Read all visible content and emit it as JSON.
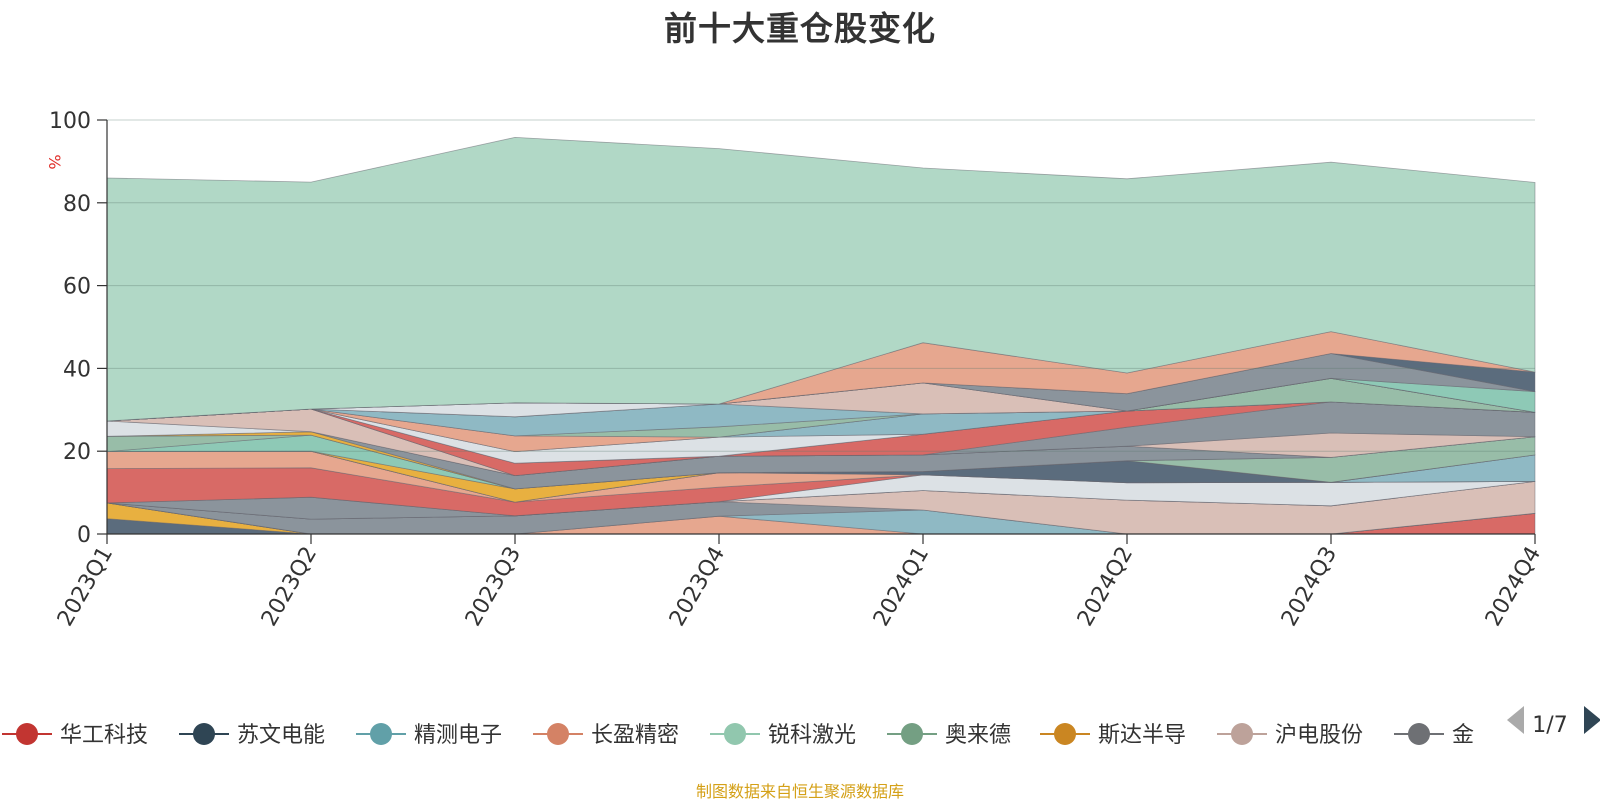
{
  "title": "前十大重仓股变化",
  "footer": "制图数据来自恒生聚源数据库",
  "legend_page": "1/7",
  "chart_data": {
    "type": "area",
    "stacked": true,
    "title": "前十大重仓股变化",
    "ylabel": "%",
    "ylim": [
      0,
      100
    ],
    "yticks": [
      0,
      20,
      40,
      60,
      80,
      100
    ],
    "grid": true,
    "legend_position": "bottom",
    "categories": [
      "2023Q1",
      "2023Q2",
      "2023Q3",
      "2023Q4",
      "2024Q1",
      "2024Q2",
      "2024Q3",
      "2024Q4"
    ],
    "layers": [
      {
        "color": "#5b6c7d",
        "values": [
          3.7,
          0,
          0,
          0,
          0,
          0,
          0,
          0
        ]
      },
      {
        "color": "#e8b040",
        "values": [
          3.8,
          0,
          0,
          0,
          0,
          0,
          0,
          0
        ]
      },
      {
        "color": "#d86a66",
        "values": [
          0,
          0,
          0,
          0,
          0,
          0,
          0,
          5
        ]
      },
      {
        "color": "#8ec9b6",
        "values": [
          0,
          0,
          0,
          0,
          0,
          0,
          0,
          0
        ]
      },
      {
        "color": "#e6a78f",
        "values": [
          0,
          0,
          0,
          4.3,
          0,
          0,
          0,
          0
        ]
      },
      {
        "color": "#8fb9c4",
        "values": [
          0,
          0,
          0,
          0,
          5.8,
          0,
          0,
          0
        ]
      },
      {
        "color": "#8b949c",
        "values": [
          0,
          3.6,
          4.4,
          3.5,
          0,
          0,
          0,
          0
        ]
      },
      {
        "color": "#d9bfb7",
        "values": [
          0,
          0,
          0,
          0,
          4.7,
          8.2,
          6.8,
          7.7
        ]
      },
      {
        "color": "#98bda8",
        "values": [
          0,
          0,
          0,
          0,
          0,
          0,
          0,
          0
        ]
      },
      {
        "color": "#8b949c",
        "values": [
          0,
          5.3,
          0,
          0,
          0,
          0,
          0,
          0
        ]
      },
      {
        "color": "#dce1e5",
        "values": [
          0,
          0,
          0,
          0,
          3.8,
          4.2,
          5.7,
          0
        ]
      },
      {
        "color": "#d86a66",
        "values": [
          8.3,
          7.1,
          3.3,
          3.5,
          0,
          0,
          0,
          0
        ]
      },
      {
        "color": "#e6a78f",
        "values": [
          4.1,
          4.0,
          0,
          3.5,
          0,
          0,
          0,
          0
        ]
      },
      {
        "color": "#5b6c7d",
        "values": [
          0,
          0,
          0,
          0,
          0.8,
          5.3,
          0,
          0
        ]
      },
      {
        "color": "#8fb9c4",
        "values": [
          0,
          0,
          0,
          0,
          0,
          0,
          0,
          6.4
        ]
      },
      {
        "color": "#e8b040",
        "values": [
          0,
          0,
          3.2,
          0,
          0,
          0,
          0,
          0
        ]
      },
      {
        "color": "#8ec9b6",
        "values": [
          0,
          3.9,
          0,
          0,
          0,
          0,
          0,
          0
        ]
      },
      {
        "color": "#98bda8",
        "values": [
          3.7,
          0,
          0,
          0,
          0,
          0,
          6.0,
          4.4
        ]
      },
      {
        "color": "#e8b040",
        "values": [
          0,
          0.8,
          0,
          0,
          0,
          0,
          0,
          0
        ]
      },
      {
        "color": "#8b949c",
        "values": [
          0,
          0,
          3.2,
          4.0,
          4.0,
          3.5,
          0,
          0
        ]
      },
      {
        "color": "#dce1e5",
        "values": [
          3.7,
          0,
          0,
          0,
          0,
          0,
          0,
          0
        ]
      },
      {
        "color": "#d9bfb7",
        "values": [
          0,
          5.5,
          0,
          0,
          0,
          0,
          5.9,
          0
        ]
      },
      {
        "color": "#8b949c",
        "values": [
          0,
          0,
          0,
          0,
          0,
          4.6,
          7.5,
          5.9
        ]
      },
      {
        "color": "#d86a66",
        "values": [
          0,
          0,
          3.0,
          0,
          5.0,
          3.9,
          0,
          0
        ]
      },
      {
        "color": "#e6a78f",
        "values": [
          0,
          0,
          0,
          0,
          0,
          0,
          0,
          0
        ]
      },
      {
        "color": "#dce1e5",
        "values": [
          0,
          0,
          2.8,
          4.6,
          0,
          0,
          0,
          0
        ]
      },
      {
        "color": "#8fb9c4",
        "values": [
          0,
          0,
          0,
          0,
          4.9,
          0,
          0,
          0
        ]
      },
      {
        "color": "#e6a78f",
        "values": [
          0,
          0,
          3.8,
          0,
          0,
          0,
          0,
          0
        ]
      },
      {
        "color": "#98bda8",
        "values": [
          0,
          0,
          0,
          2.5,
          0,
          0,
          5.7,
          0
        ]
      },
      {
        "color": "#8fb9c4",
        "values": [
          0,
          0,
          4.6,
          5.5,
          0,
          0,
          0,
          0
        ]
      },
      {
        "color": "#d9bfb7",
        "values": [
          0,
          0,
          0,
          0,
          7.5,
          0,
          0,
          0
        ]
      },
      {
        "color": "#dce1e5",
        "values": [
          0,
          0,
          3.4,
          0,
          0,
          0,
          0,
          0
        ]
      },
      {
        "color": "#8ec9b6",
        "values": [
          0,
          0,
          0,
          0,
          0,
          0,
          0,
          5.0
        ]
      },
      {
        "color": "#8b949c",
        "values": [
          0,
          0,
          0,
          0,
          0,
          4.2,
          6.0,
          0
        ]
      },
      {
        "color": "#5b6c7d",
        "values": [
          0,
          0,
          0,
          0,
          0,
          0,
          0,
          4.7
        ]
      },
      {
        "color": "#e6a78f",
        "values": [
          0,
          0,
          0,
          0,
          9.7,
          5.0,
          5.3,
          0
        ]
      },
      {
        "color": "#b1d8c6",
        "values": [
          58.7,
          54.8,
          64.1,
          61.7,
          42.2,
          46.9,
          40.9,
          45.8
        ]
      }
    ],
    "legend": [
      {
        "name": "华工科技",
        "color": "#c23531"
      },
      {
        "name": "苏文电能",
        "color": "#2f4554"
      },
      {
        "name": "精测电子",
        "color": "#61a0a8"
      },
      {
        "name": "长盈精密",
        "color": "#d48265"
      },
      {
        "name": "锐科激光",
        "color": "#91c7ae"
      },
      {
        "name": "奥来德",
        "color": "#749f83"
      },
      {
        "name": "斯达半导",
        "color": "#ca8622"
      },
      {
        "name": "沪电股份",
        "color": "#bda29a"
      },
      {
        "name": "金",
        "color": "#6e7074"
      }
    ]
  }
}
